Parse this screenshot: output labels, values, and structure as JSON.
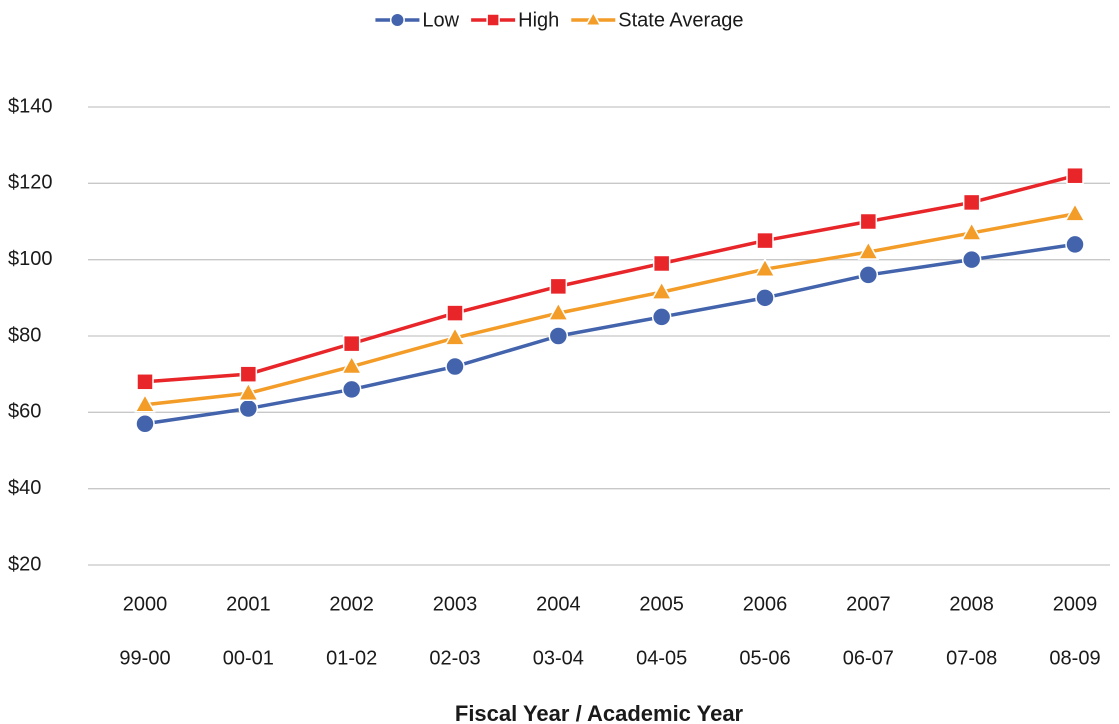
{
  "chart_data": {
    "type": "line",
    "x_title": "Fiscal Year / Academic Year",
    "categories": [
      [
        "2000",
        "99-00"
      ],
      [
        "2001",
        "00-01"
      ],
      [
        "2002",
        "01-02"
      ],
      [
        "2003",
        "02-03"
      ],
      [
        "2004",
        "03-04"
      ],
      [
        "2005",
        "04-05"
      ],
      [
        "2006",
        "05-06"
      ],
      [
        "2007",
        "06-07"
      ],
      [
        "2008",
        "07-08"
      ],
      [
        "2009",
        "08-09"
      ]
    ],
    "series": [
      {
        "name": "Low",
        "color": "#4364ac",
        "marker": "circle",
        "values": [
          57,
          61,
          66,
          72,
          80,
          85,
          90,
          96,
          100,
          104
        ]
      },
      {
        "name": "High",
        "color": "#e8262a",
        "marker": "square",
        "values": [
          68,
          70,
          78,
          86,
          93,
          99,
          105,
          110,
          115,
          122
        ]
      },
      {
        "name": "State Average",
        "color": "#f39c27",
        "marker": "triangle",
        "values": [
          62,
          65,
          72,
          79.5,
          86,
          91.5,
          97.5,
          102,
          107,
          112
        ]
      }
    ],
    "ylim": [
      20,
      140
    ],
    "yticks": [
      {
        "value": 20,
        "label": "$20"
      },
      {
        "value": 40,
        "label": "$40"
      },
      {
        "value": 60,
        "label": "$60"
      },
      {
        "value": 80,
        "label": "$80"
      },
      {
        "value": 100,
        "label": "$100"
      },
      {
        "value": 120,
        "label": "$120"
      },
      {
        "value": 140,
        "label": "$140"
      }
    ],
    "grid": true,
    "legend": "top"
  }
}
